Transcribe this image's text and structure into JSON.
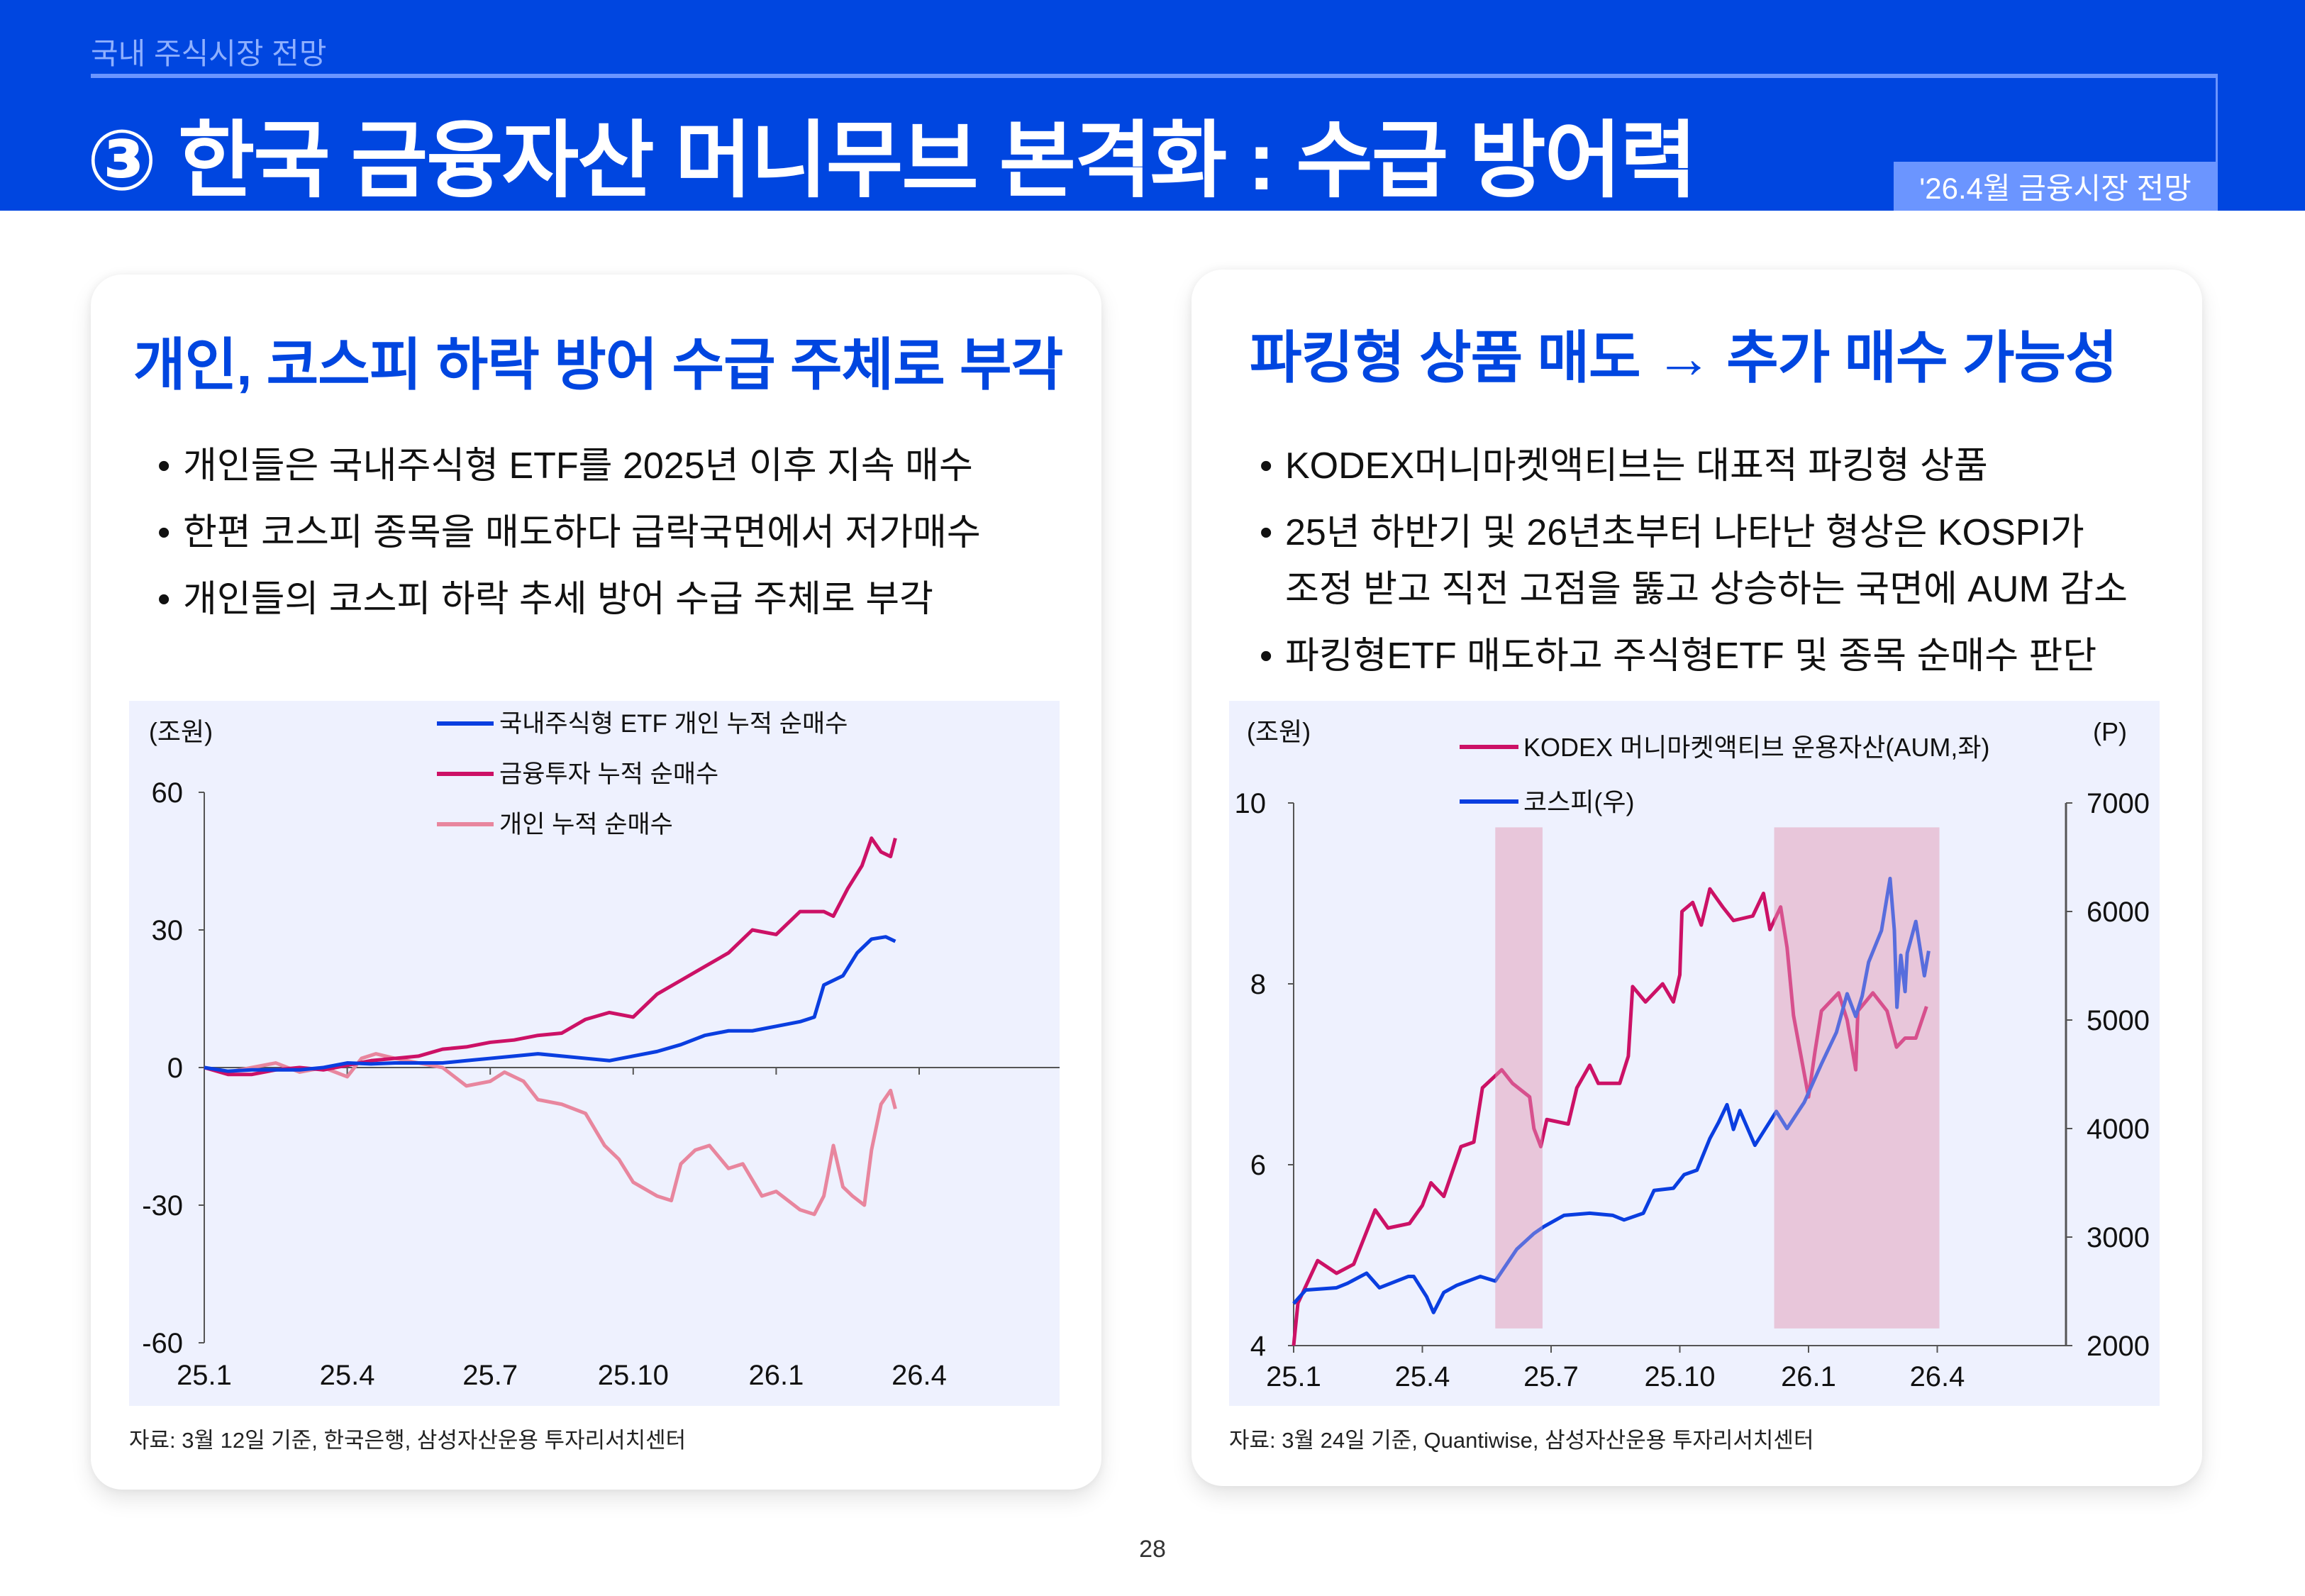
{
  "header": {
    "section": "국내 주식시장 전망",
    "title": "③ 한국 금융자산 머니무브 본격화 : 수급 방어력",
    "badge": "'26.4월 금융시장 전망"
  },
  "left_panel": {
    "title": "개인, 코스피 하락 방어 수급 주체로 부각",
    "bullets": [
      "개인들은 국내주식형 ETF를 2025년 이후 지속 매수",
      "한편 코스피 종목을 매도하다 급락국면에서 저가매수",
      "개인들의 코스피 하락 추세 방어 수급 주체로 부각"
    ],
    "source": "자료: 3월 12일 기준, 한국은행, 삼성자산운용 투자리서치센터"
  },
  "right_panel": {
    "title": "파킹형 상품 매도 → 추가 매수 가능성",
    "bullets": [
      "KODEX머니마켓액티브는 대표적 파킹형 상품",
      "25년 하반기 및 26년초부터 나타난 형상은 KOSPI가",
      "조정 받고 직전 고점을 뚫고 상승하는 국면에 AUM 감소",
      "파킹형ETF 매도하고 주식형ETF 및 종목 순매수 판단"
    ],
    "source": "자료: 3월 24일 기준, Quantiwise, 삼성자산운용 투자리서치센터"
  },
  "page_number": "28",
  "chart_data": [
    {
      "type": "line",
      "ylabel": "(조원)",
      "ylim": [
        -60,
        60
      ],
      "yticks": [
        "60",
        "30",
        "0",
        "-30",
        "-60"
      ],
      "ytick_values": [
        60,
        30,
        0,
        -30,
        -60
      ],
      "xticks": [
        "25.1",
        "25.4",
        "25.7",
        "25.10",
        "26.1",
        "26.4"
      ],
      "xtick_values": [
        0,
        3,
        6,
        9,
        12,
        15
      ],
      "x_unit": "months since 2025-01",
      "legend_position": "top",
      "series": [
        {
          "name": "국내주식형 ETF 개인 누적 순매수",
          "color": "#0a3ee0",
          "points": [
            [
              0,
              0
            ],
            [
              0.5,
              -0.8
            ],
            [
              1,
              -0.5
            ],
            [
              2,
              -0.5
            ],
            [
              2.5,
              0
            ],
            [
              3,
              1
            ],
            [
              3.5,
              0.8
            ],
            [
              4,
              1
            ],
            [
              5,
              1
            ],
            [
              5.5,
              1.5
            ],
            [
              6,
              2
            ],
            [
              6.5,
              2.5
            ],
            [
              7,
              3
            ],
            [
              8,
              2
            ],
            [
              8.5,
              1.5
            ],
            [
              9,
              2.5
            ],
            [
              9.5,
              3.5
            ],
            [
              10,
              5
            ],
            [
              10.5,
              7
            ],
            [
              11,
              8
            ],
            [
              11.5,
              8
            ],
            [
              12,
              9
            ],
            [
              12.5,
              10
            ],
            [
              12.8,
              11
            ],
            [
              13,
              18
            ],
            [
              13.4,
              20
            ],
            [
              13.7,
              25
            ],
            [
              14,
              28
            ],
            [
              14.3,
              28.5
            ],
            [
              14.5,
              27.5
            ]
          ]
        },
        {
          "name": "금융투자 누적 순매수",
          "color": "#cc1166",
          "points": [
            [
              0,
              0
            ],
            [
              0.5,
              -1.5
            ],
            [
              1,
              -1.5
            ],
            [
              1.5,
              -0.5
            ],
            [
              2,
              0
            ],
            [
              2.5,
              -0.5
            ],
            [
              3,
              0.5
            ],
            [
              3.5,
              1.5
            ],
            [
              4,
              2
            ],
            [
              4.5,
              2.5
            ],
            [
              5,
              4
            ],
            [
              5.5,
              4.5
            ],
            [
              6,
              5.5
            ],
            [
              6.5,
              6
            ],
            [
              7,
              7
            ],
            [
              7.5,
              7.5
            ],
            [
              8,
              10.5
            ],
            [
              8.5,
              12
            ],
            [
              9,
              11
            ],
            [
              9.5,
              16
            ],
            [
              10,
              19
            ],
            [
              10.5,
              22
            ],
            [
              11,
              25
            ],
            [
              11.5,
              30
            ],
            [
              12,
              29
            ],
            [
              12.5,
              34
            ],
            [
              13,
              34
            ],
            [
              13.2,
              33
            ],
            [
              13.5,
              39
            ],
            [
              13.8,
              44
            ],
            [
              14,
              50
            ],
            [
              14.2,
              47
            ],
            [
              14.4,
              46
            ],
            [
              14.5,
              50
            ]
          ]
        },
        {
          "name": "개인 누적 순매수",
          "color": "#e8869e",
          "points": [
            [
              0,
              0
            ],
            [
              0.5,
              -1
            ],
            [
              1,
              0
            ],
            [
              1.5,
              1
            ],
            [
              2,
              -1
            ],
            [
              2.5,
              0
            ],
            [
              3,
              -2
            ],
            [
              3.3,
              2
            ],
            [
              3.6,
              3
            ],
            [
              4,
              2
            ],
            [
              4.5,
              1
            ],
            [
              5,
              0
            ],
            [
              5.5,
              -4
            ],
            [
              6,
              -3
            ],
            [
              6.3,
              -1
            ],
            [
              6.7,
              -3
            ],
            [
              7,
              -7
            ],
            [
              7.5,
              -8
            ],
            [
              8,
              -10
            ],
            [
              8.4,
              -17
            ],
            [
              8.7,
              -20
            ],
            [
              9,
              -25
            ],
            [
              9.5,
              -28
            ],
            [
              9.8,
              -29
            ],
            [
              10,
              -21
            ],
            [
              10.3,
              -18
            ],
            [
              10.6,
              -17
            ],
            [
              11,
              -22
            ],
            [
              11.3,
              -21
            ],
            [
              11.7,
              -28
            ],
            [
              12,
              -27
            ],
            [
              12.5,
              -31
            ],
            [
              12.8,
              -32
            ],
            [
              13,
              -28
            ],
            [
              13.2,
              -17
            ],
            [
              13.4,
              -26
            ],
            [
              13.6,
              -28
            ],
            [
              13.85,
              -30
            ],
            [
              14,
              -18
            ],
            [
              14.2,
              -8
            ],
            [
              14.4,
              -5
            ],
            [
              14.5,
              -9
            ]
          ]
        }
      ]
    },
    {
      "type": "line",
      "ylabel": "(조원)",
      "y2label": "(P)",
      "ylim": [
        4,
        10
      ],
      "y2lim": [
        2000,
        7000
      ],
      "yticks": [
        "10",
        "8",
        "6",
        "4"
      ],
      "ytick_values": [
        10,
        8,
        6,
        4
      ],
      "y2ticks": [
        "7000",
        "6000",
        "5000",
        "4000",
        "3000",
        "2000"
      ],
      "y2tick_values": [
        7000,
        6000,
        5000,
        4000,
        3000,
        2000
      ],
      "xticks": [
        "25.1",
        "25.4",
        "25.7",
        "25.10",
        "26.1",
        "26.4"
      ],
      "xtick_values": [
        0,
        3,
        6,
        9,
        12,
        15
      ],
      "xlim": [
        0,
        18
      ],
      "x_unit": "months since 2025-01",
      "legend_position": "top",
      "shaded_periods": [
        [
          4.7,
          5.8
        ],
        [
          11.2,
          15.05
        ]
      ],
      "shade_color": "#dc82a5",
      "series": [
        {
          "name": "KODEX 머니마켓액티브 운용자산(AUM,좌)",
          "axis": "left",
          "color": "#cc1166",
          "points": [
            [
              0,
              4
            ],
            [
              0.1,
              4.47
            ],
            [
              0.56,
              4.94
            ],
            [
              1,
              4.8
            ],
            [
              1.4,
              4.9
            ],
            [
              1.9,
              5.5
            ],
            [
              2.2,
              5.3
            ],
            [
              2.7,
              5.35
            ],
            [
              3,
              5.55
            ],
            [
              3.2,
              5.8
            ],
            [
              3.5,
              5.65
            ],
            [
              3.9,
              6.2
            ],
            [
              4.2,
              6.25
            ],
            [
              4.4,
              6.85
            ],
            [
              4.85,
              7.05
            ],
            [
              5.1,
              6.9
            ],
            [
              5.5,
              6.75
            ],
            [
              5.6,
              6.4
            ],
            [
              5.76,
              6.2
            ],
            [
              5.9,
              6.5
            ],
            [
              6.4,
              6.45
            ],
            [
              6.6,
              6.85
            ],
            [
              6.9,
              7.1
            ],
            [
              7.1,
              6.9
            ],
            [
              7.6,
              6.9
            ],
            [
              7.8,
              7.2
            ],
            [
              7.9,
              7.97
            ],
            [
              8.2,
              7.8
            ],
            [
              8.6,
              8.0
            ],
            [
              8.85,
              7.8
            ],
            [
              9,
              8.1
            ],
            [
              9.05,
              8.8
            ],
            [
              9.3,
              8.9
            ],
            [
              9.5,
              8.65
            ],
            [
              9.7,
              9.05
            ],
            [
              10,
              8.85
            ],
            [
              10.25,
              8.7
            ],
            [
              10.7,
              8.75
            ],
            [
              10.95,
              9.0
            ],
            [
              11.1,
              8.6
            ],
            [
              11.35,
              8.85
            ],
            [
              11.5,
              8.4
            ],
            [
              11.65,
              7.65
            ],
            [
              12,
              6.75
            ],
            [
              12.15,
              7.25
            ],
            [
              12.3,
              7.7
            ],
            [
              12.7,
              7.9
            ],
            [
              12.9,
              7.6
            ],
            [
              13.1,
              7.05
            ],
            [
              13.15,
              7.7
            ],
            [
              13.5,
              7.9
            ],
            [
              13.83,
              7.7
            ],
            [
              14.05,
              7.3
            ],
            [
              14.25,
              7.4
            ],
            [
              14.5,
              7.4
            ],
            [
              14.75,
              7.75
            ]
          ]
        },
        {
          "name": "코스피(우)",
          "axis": "right",
          "color": "#0a3ee0",
          "points": [
            [
              0,
              2387
            ],
            [
              0.28,
              2512
            ],
            [
              1,
              2533
            ],
            [
              1.26,
              2575
            ],
            [
              1.7,
              2667
            ],
            [
              2,
              2533
            ],
            [
              2.67,
              2637
            ],
            [
              2.8,
              2637
            ],
            [
              3.1,
              2450
            ],
            [
              3.26,
              2305
            ],
            [
              3.5,
              2490
            ],
            [
              3.8,
              2555
            ],
            [
              4.35,
              2637
            ],
            [
              4.7,
              2595
            ],
            [
              5.2,
              2888
            ],
            [
              5.6,
              3033
            ],
            [
              5.83,
              3096
            ],
            [
              6.3,
              3200
            ],
            [
              6.9,
              3220
            ],
            [
              7.44,
              3200
            ],
            [
              7.7,
              3158
            ],
            [
              8.15,
              3220
            ],
            [
              8.4,
              3430
            ],
            [
              8.85,
              3450
            ],
            [
              9.1,
              3575
            ],
            [
              9.4,
              3617
            ],
            [
              9.7,
              3908
            ],
            [
              9.9,
              4054
            ],
            [
              10.1,
              4220
            ],
            [
              10.25,
              3992
            ],
            [
              10.4,
              4166
            ],
            [
              10.75,
              3846
            ],
            [
              10.95,
              3971
            ],
            [
              11.25,
              4158
            ],
            [
              11.5,
              4000
            ],
            [
              11.9,
              4242
            ],
            [
              12.3,
              4595
            ],
            [
              12.65,
              4887
            ],
            [
              12.9,
              5242
            ],
            [
              13.1,
              5033
            ],
            [
              13.25,
              5221
            ],
            [
              13.4,
              5533
            ],
            [
              13.7,
              5825
            ],
            [
              13.9,
              6304
            ],
            [
              14.0,
              5825
            ],
            [
              14.06,
              5117
            ],
            [
              14.15,
              5596
            ],
            [
              14.25,
              5262
            ],
            [
              14.3,
              5617
            ],
            [
              14.5,
              5908
            ],
            [
              14.7,
              5408
            ],
            [
              14.8,
              5637
            ]
          ]
        }
      ]
    }
  ]
}
